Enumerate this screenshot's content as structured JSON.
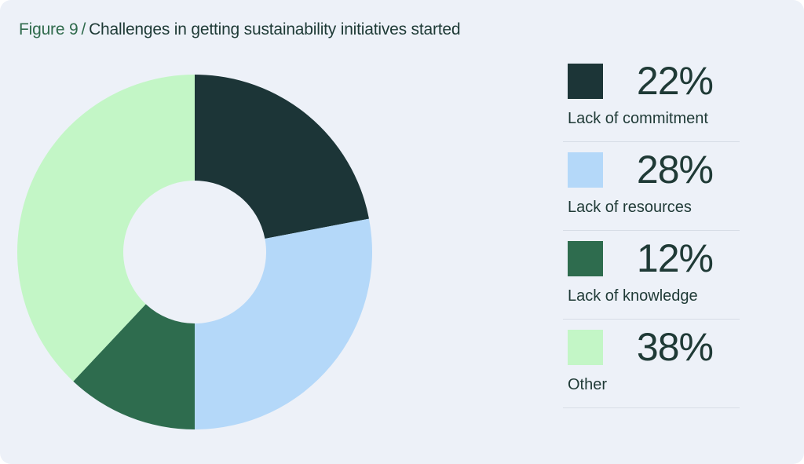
{
  "title": {
    "figure": "Figure 9",
    "separator": "/",
    "text": "Challenges in getting sustainability initiatives started"
  },
  "colors": {
    "background": "#edf1f8",
    "lack_of_commitment": "#1c3537",
    "lack_of_resources": "#b4d8f9",
    "lack_of_knowledge": "#2e6c4e",
    "other": "#c3f6c6"
  },
  "chart_data": {
    "type": "pie",
    "variant": "donut",
    "title": "Figure 9 / Challenges in getting sustainability initiatives started",
    "legend_position": "right",
    "slices": [
      {
        "label": "Lack of commitment",
        "value": 22,
        "display": "22%",
        "color": "#1c3537"
      },
      {
        "label": "Lack of resources",
        "value": 28,
        "display": "28%",
        "color": "#b4d8f9"
      },
      {
        "label": "Lack of knowledge",
        "value": 12,
        "display": "12%",
        "color": "#2e6c4e"
      },
      {
        "label": "Other",
        "value": 38,
        "display": "38%",
        "color": "#c3f6c6"
      }
    ]
  }
}
